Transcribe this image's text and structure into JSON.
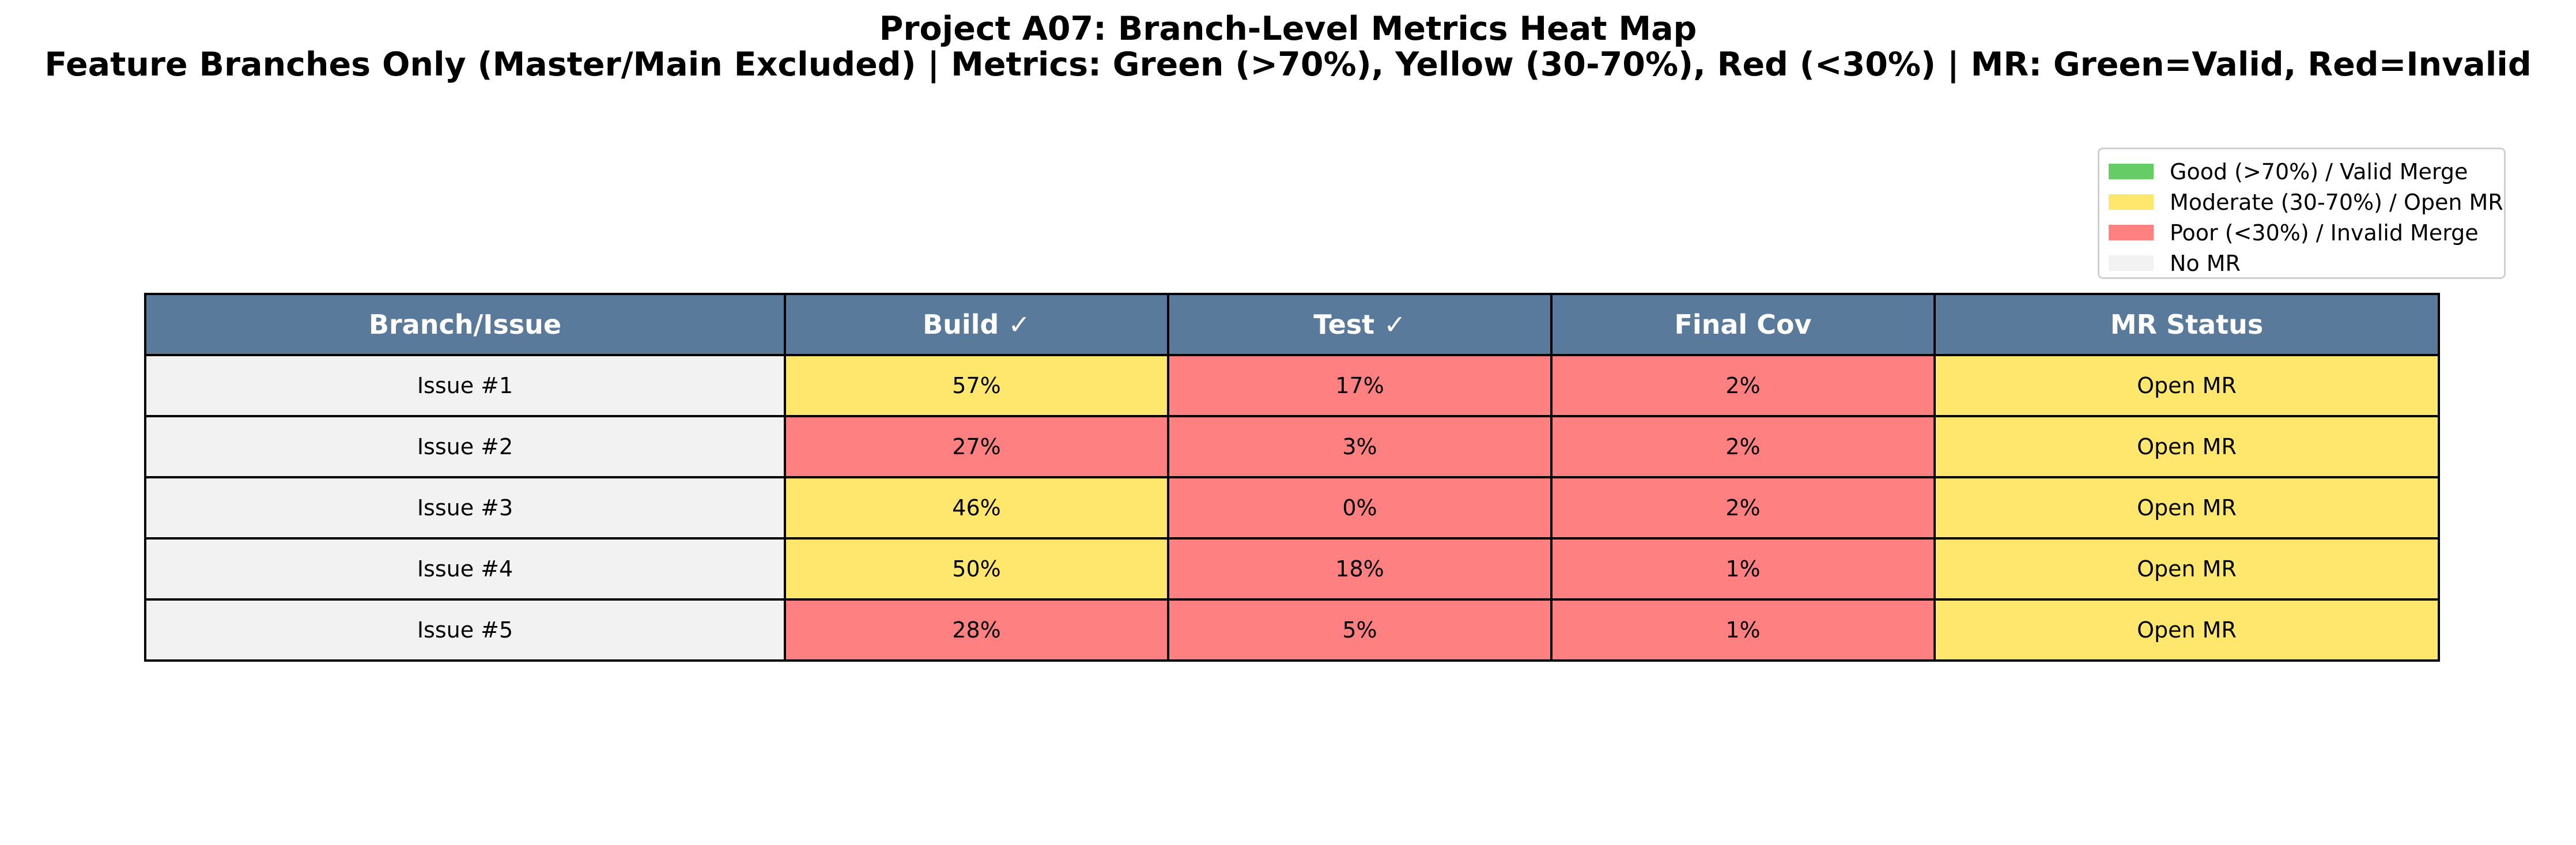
{
  "chart_data": {
    "type": "table",
    "title": "Project A07: Branch-Level Metrics Heat Map",
    "subtitle": "Feature Branches Only (Master/Main Excluded) | Metrics: Green (>70%), Yellow (30-70%), Red (<30%) | MR: Green=Valid, Red=Invalid",
    "columns": [
      "Branch/Issue",
      "Build ✓",
      "Test ✓",
      "Final Cov",
      "MR Status"
    ],
    "rows": [
      {
        "branch": "Issue #1",
        "build": 57,
        "test": 17,
        "final_cov": 2,
        "mr_status": "Open MR"
      },
      {
        "branch": "Issue #2",
        "build": 27,
        "test": 3,
        "final_cov": 2,
        "mr_status": "Open MR"
      },
      {
        "branch": "Issue #3",
        "build": 46,
        "test": 0,
        "final_cov": 2,
        "mr_status": "Open MR"
      },
      {
        "branch": "Issue #4",
        "build": 50,
        "test": 18,
        "final_cov": 1,
        "mr_status": "Open MR"
      },
      {
        "branch": "Issue #5",
        "build": 28,
        "test": 5,
        "final_cov": 1,
        "mr_status": "Open MR"
      }
    ],
    "legend": {
      "placement": "top-right",
      "items": [
        {
          "label": "Good (>70%) / Valid Merge",
          "color": "#66cc66"
        },
        {
          "label": "Moderate (30-70%) / Open MR",
          "color": "#ffe66d"
        },
        {
          "label": "Poor (<30%) / Invalid Merge",
          "color": "#ff8080"
        },
        {
          "label": "No MR",
          "color": "#f2f2f2"
        }
      ]
    },
    "thresholds": {
      "good_above": 70,
      "poor_below": 30
    },
    "colors": {
      "header_bg": "#5a7a9c",
      "header_text": "#ffffff",
      "branch_bg": "#f2f2f2",
      "good": "#66cc66",
      "moderate": "#ffe66d",
      "poor": "#ff8080",
      "no_mr": "#f2f2f2",
      "mr_open": "#ffe66d",
      "mr_valid": "#66cc66",
      "mr_invalid": "#ff8080"
    }
  }
}
